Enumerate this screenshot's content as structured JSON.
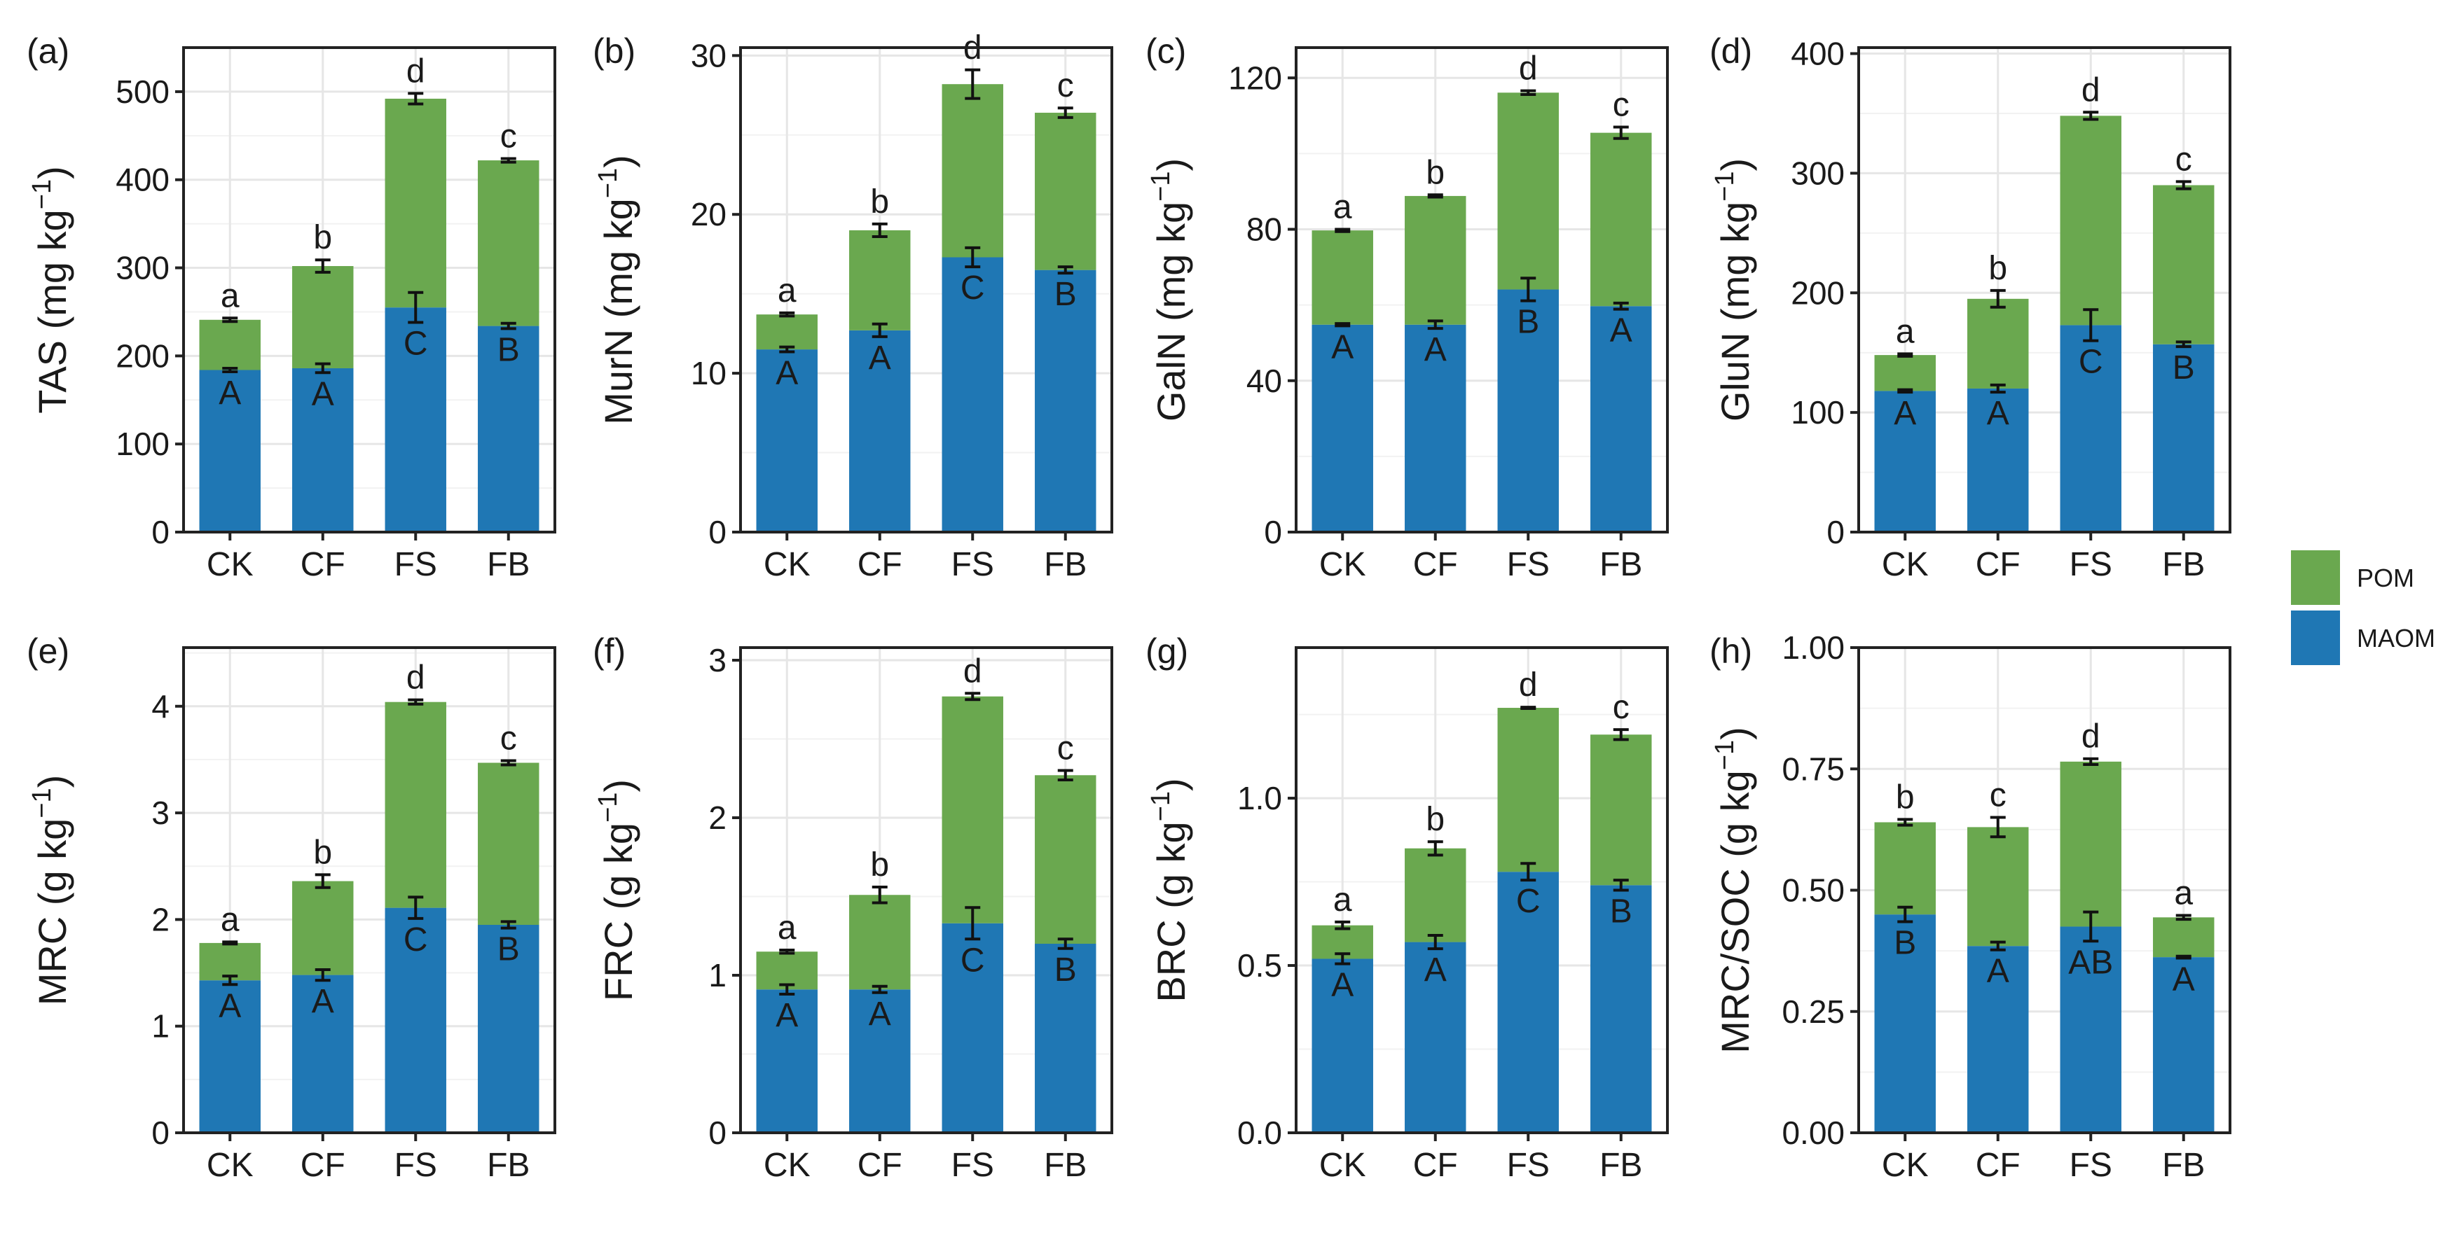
{
  "legend": {
    "entries": [
      {
        "label": "POM",
        "color": "#6aa84f"
      },
      {
        "label": "MAOM",
        "color": "#1f77b4"
      }
    ]
  },
  "colors": {
    "pom": "#6aa84f",
    "maom": "#1f77b4",
    "grid": "#e6e6e6",
    "axis": "#222222"
  },
  "chart_data": [
    {
      "panel": "(a)",
      "type": "bar",
      "stacked": true,
      "ylabel_main": "TAS",
      "ylabel_unit": "(mg kg",
      "ylabel_exp": "−1",
      "ylabel_close": ")",
      "ylim": [
        0,
        550
      ],
      "yticks": [
        0,
        100,
        200,
        300,
        400,
        500
      ],
      "tick_labels": [
        "0",
        "100",
        "200",
        "300",
        "400",
        "500"
      ],
      "categories": [
        "CK",
        "CF",
        "FS",
        "FB"
      ],
      "series": [
        {
          "name": "MAOM",
          "values": [
            184,
            186,
            255,
            234
          ],
          "errors": [
            2,
            5,
            17,
            3
          ],
          "letters": [
            "A",
            "A",
            "C",
            "B"
          ]
        },
        {
          "name": "POM",
          "values": [
            57,
            116,
            237,
            188
          ],
          "errors": [
            2,
            7,
            6,
            2
          ],
          "letters": [
            "a",
            "b",
            "d",
            "c"
          ]
        }
      ]
    },
    {
      "panel": "(b)",
      "type": "bar",
      "stacked": true,
      "ylabel_main": "MurN",
      "ylabel_unit": "(mg kg",
      "ylabel_exp": "−1",
      "ylabel_close": ")",
      "ylim": [
        0,
        30.5
      ],
      "yticks": [
        0,
        10,
        20,
        30
      ],
      "tick_labels": [
        "0",
        "10",
        "20",
        "30"
      ],
      "categories": [
        "CK",
        "CF",
        "FS",
        "FB"
      ],
      "series": [
        {
          "name": "MAOM",
          "values": [
            11.5,
            12.7,
            17.3,
            16.5
          ],
          "errors": [
            0.15,
            0.4,
            0.6,
            0.2
          ],
          "letters": [
            "A",
            "A",
            "C",
            "B"
          ]
        },
        {
          "name": "POM",
          "values": [
            2.2,
            6.3,
            10.9,
            9.9
          ],
          "errors": [
            0.1,
            0.4,
            0.9,
            0.3
          ],
          "letters": [
            "a",
            "b",
            "d",
            "c"
          ]
        }
      ]
    },
    {
      "panel": "(c)",
      "type": "bar",
      "stacked": true,
      "ylabel_main": "GalN",
      "ylabel_unit": "(mg kg",
      "ylabel_exp": "−1",
      "ylabel_close": ")",
      "ylim": [
        0,
        128
      ],
      "yticks": [
        0,
        40,
        80,
        120
      ],
      "tick_labels": [
        "0",
        "40",
        "80",
        "120"
      ],
      "categories": [
        "CK",
        "CF",
        "FS",
        "FB"
      ],
      "series": [
        {
          "name": "MAOM",
          "values": [
            54.8,
            54.8,
            64.1,
            59.7
          ],
          "errors": [
            0.3,
            1,
            3,
            0.8
          ],
          "letters": [
            "A",
            "A",
            "B",
            "A"
          ]
        },
        {
          "name": "POM",
          "values": [
            24.9,
            34.0,
            52.0,
            45.8
          ],
          "errors": [
            0.3,
            0.3,
            0.5,
            1.5
          ],
          "letters": [
            "a",
            "b",
            "d",
            "c"
          ]
        }
      ]
    },
    {
      "panel": "(d)",
      "type": "bar",
      "stacked": true,
      "ylabel_main": "GluN",
      "ylabel_unit": "(mg kg",
      "ylabel_exp": "−1",
      "ylabel_close": ")",
      "ylim": [
        0,
        405
      ],
      "yticks": [
        0,
        100,
        200,
        300,
        400
      ],
      "tick_labels": [
        "0",
        "100",
        "200",
        "300",
        "400"
      ],
      "categories": [
        "CK",
        "CF",
        "FS",
        "FB"
      ],
      "series": [
        {
          "name": "MAOM",
          "values": [
            118,
            120,
            173,
            157
          ],
          "errors": [
            1,
            3,
            13,
            2
          ],
          "letters": [
            "A",
            "A",
            "C",
            "B"
          ]
        },
        {
          "name": "POM",
          "values": [
            30,
            75,
            175,
            133
          ],
          "errors": [
            1,
            7,
            3,
            3
          ],
          "letters": [
            "a",
            "b",
            "d",
            "c"
          ]
        }
      ]
    },
    {
      "panel": "(e)",
      "type": "bar",
      "stacked": true,
      "ylabel_main": "MRC",
      "ylabel_unit": "(g kg",
      "ylabel_exp": "−1",
      "ylabel_close": ")",
      "ylim": [
        0,
        4.55
      ],
      "yticks": [
        0,
        1,
        2,
        3,
        4
      ],
      "tick_labels": [
        "0",
        "1",
        "2",
        "3",
        "4"
      ],
      "categories": [
        "CK",
        "CF",
        "FS",
        "FB"
      ],
      "series": [
        {
          "name": "MAOM",
          "values": [
            1.43,
            1.48,
            2.11,
            1.95
          ],
          "errors": [
            0.04,
            0.05,
            0.1,
            0.03
          ],
          "letters": [
            "A",
            "A",
            "C",
            "B"
          ]
        },
        {
          "name": "POM",
          "values": [
            0.35,
            0.88,
            1.93,
            1.52
          ],
          "errors": [
            0.01,
            0.06,
            0.02,
            0.02
          ],
          "letters": [
            "a",
            "b",
            "d",
            "c"
          ]
        }
      ]
    },
    {
      "panel": "(f)",
      "type": "bar",
      "stacked": true,
      "ylabel_main": "FRC",
      "ylabel_unit": "(g kg",
      "ylabel_exp": "−1",
      "ylabel_close": ")",
      "ylim": [
        0,
        3.08
      ],
      "yticks": [
        0,
        1,
        2,
        3
      ],
      "tick_labels": [
        "0",
        "1",
        "2",
        "3"
      ],
      "categories": [
        "CK",
        "CF",
        "FS",
        "FB"
      ],
      "series": [
        {
          "name": "MAOM",
          "values": [
            0.91,
            0.91,
            1.33,
            1.2
          ],
          "errors": [
            0.03,
            0.02,
            0.1,
            0.03
          ],
          "letters": [
            "A",
            "A",
            "C",
            "B"
          ]
        },
        {
          "name": "POM",
          "values": [
            0.24,
            0.6,
            1.44,
            1.07
          ],
          "errors": [
            0.01,
            0.05,
            0.02,
            0.03
          ],
          "letters": [
            "a",
            "b",
            "d",
            "c"
          ]
        }
      ]
    },
    {
      "panel": "(g)",
      "type": "bar",
      "stacked": true,
      "ylabel_main": "BRC",
      "ylabel_unit": "(g kg",
      "ylabel_exp": "−1",
      "ylabel_close": ")",
      "ylim": [
        0,
        1.45
      ],
      "yticks": [
        0,
        0.5,
        1.0
      ],
      "tick_labels": [
        "0.0",
        "0.5",
        "1.0"
      ],
      "categories": [
        "CK",
        "CF",
        "FS",
        "FB"
      ],
      "series": [
        {
          "name": "MAOM",
          "values": [
            0.52,
            0.57,
            0.78,
            0.74
          ],
          "errors": [
            0.015,
            0.02,
            0.025,
            0.015
          ],
          "letters": [
            "A",
            "A",
            "C",
            "B"
          ]
        },
        {
          "name": "POM",
          "values": [
            0.1,
            0.28,
            0.49,
            0.45
          ],
          "errors": [
            0.01,
            0.02,
            0.002,
            0.015
          ],
          "letters": [
            "a",
            "b",
            "d",
            "c"
          ]
        }
      ]
    },
    {
      "panel": "(h)",
      "type": "bar",
      "stacked": true,
      "ylabel_main": "MRC/SOC",
      "ylabel_unit": "(g kg",
      "ylabel_exp": "−1",
      "ylabel_close": ")",
      "ylim": [
        0,
        1.0
      ],
      "yticks": [
        0,
        0.25,
        0.5,
        0.75,
        1.0
      ],
      "tick_labels": [
        "0.00",
        "0.25",
        "0.50",
        "0.75",
        "1.00"
      ],
      "categories": [
        "CK",
        "CF",
        "FS",
        "FB"
      ],
      "series": [
        {
          "name": "MAOM",
          "values": [
            0.45,
            0.385,
            0.425,
            0.362
          ],
          "errors": [
            0.015,
            0.008,
            0.03,
            0.002
          ],
          "letters": [
            "B",
            "A",
            "AB",
            "A"
          ]
        },
        {
          "name": "POM",
          "values": [
            0.19,
            0.245,
            0.34,
            0.082
          ],
          "errors": [
            0.006,
            0.02,
            0.006,
            0.004
          ],
          "letters": [
            "b",
            "c",
            "d",
            "a"
          ]
        }
      ]
    }
  ]
}
